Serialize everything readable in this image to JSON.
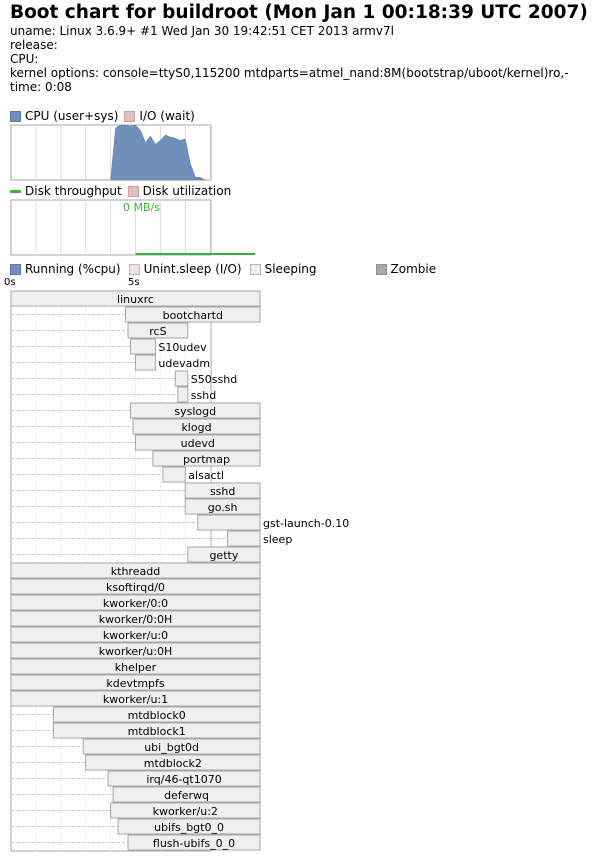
{
  "title": "Boot chart for buildroot (Mon Jan  1 00:18:39 UTC 2007)",
  "header": {
    "uname": "uname: Linux 3.6.9+ #1 Wed Jan 30 19:42:51 CET 2013 armv7l",
    "release": "release:",
    "cpu": "CPU:",
    "kernel": "kernel options: console=ttyS0,115200 mtdparts=atmel_nand:8M(bootstrap/uboot/kernel)ro,-",
    "time": "time: 0:08"
  },
  "legend_cpu": {
    "cpu_label": "CPU (user+sys)",
    "io_label": "I/O (wait)"
  },
  "legend_disk": {
    "throughput_label": "Disk throughput",
    "util_label": "Disk utilization"
  },
  "disk_rate": "0 MB/s",
  "legend_proc": {
    "running": "Running (%cpu)",
    "unint": "Unint.sleep (I/O)",
    "sleeping": "Sleeping",
    "zombie": "Zombie"
  },
  "colors": {
    "cpu": "#7190b9",
    "io": "#e1bfc0",
    "disk": "#3cb33c",
    "sleeping": "#efefef",
    "unint": "#f0e3e3",
    "zombie": "#a9a9a9",
    "border": "#a6a6a6"
  },
  "chart_data": [
    {
      "type": "area",
      "xlabel_ticks": [
        "0s",
        "5s"
      ],
      "series": [
        {
          "name": "CPU (user+sys)",
          "x": [
            4.0,
            4.2,
            4.4,
            4.6,
            4.8,
            5.0,
            5.2,
            5.4,
            5.6,
            5.8,
            6.0,
            6.2,
            6.4,
            6.6,
            6.8,
            7.0,
            7.2,
            7.4,
            7.6,
            7.8
          ],
          "values": [
            0,
            95,
            100,
            100,
            98,
            100,
            90,
            68,
            80,
            65,
            72,
            82,
            78,
            76,
            72,
            75,
            30,
            5,
            5,
            0
          ]
        }
      ],
      "xlim": [
        0,
        10
      ],
      "ylim": [
        0,
        100
      ]
    },
    {
      "type": "line",
      "series": [
        {
          "name": "Disk throughput",
          "x": [
            5.0,
            9.8
          ],
          "values": [
            0,
            0
          ]
        }
      ],
      "xlim": [
        0,
        10
      ]
    },
    {
      "type": "gantt",
      "time_ticks": [
        "0s",
        "5s"
      ],
      "processes": [
        {
          "name": "linuxrc",
          "start": 0.0,
          "end": 10.0
        },
        {
          "name": "bootchartd",
          "start": 4.6,
          "end": 10.0
        },
        {
          "name": "rcS",
          "start": 4.7,
          "end": 7.1
        },
        {
          "name": "S10udev",
          "start": 4.8,
          "end": 5.8
        },
        {
          "name": "udevadm",
          "start": 5.0,
          "end": 5.8
        },
        {
          "name": "S50sshd",
          "start": 6.6,
          "end": 7.1
        },
        {
          "name": "sshd",
          "start": 6.7,
          "end": 7.1
        },
        {
          "name": "syslogd",
          "start": 4.8,
          "end": 10.0
        },
        {
          "name": "klogd",
          "start": 4.9,
          "end": 10.0
        },
        {
          "name": "udevd",
          "start": 5.0,
          "end": 10.0
        },
        {
          "name": "portmap",
          "start": 5.7,
          "end": 10.0
        },
        {
          "name": "alsactl",
          "start": 6.1,
          "end": 7.0
        },
        {
          "name": "sshd",
          "start": 7.0,
          "end": 10.0
        },
        {
          "name": "go.sh",
          "start": 7.0,
          "end": 10.0
        },
        {
          "name": "gst-launch-0.10",
          "start": 7.5,
          "end": 10.0
        },
        {
          "name": "sleep",
          "start": 8.7,
          "end": 10.0
        },
        {
          "name": "getty",
          "start": 7.1,
          "end": 10.0
        },
        {
          "name": "kthreadd",
          "start": 0.0,
          "end": 10.0
        },
        {
          "name": "ksoftirqd/0",
          "start": 0.0,
          "end": 10.0
        },
        {
          "name": "kworker/0:0",
          "start": 0.0,
          "end": 10.0
        },
        {
          "name": "kworker/0:0H",
          "start": 0.0,
          "end": 10.0
        },
        {
          "name": "kworker/u:0",
          "start": 0.0,
          "end": 10.0
        },
        {
          "name": "kworker/u:0H",
          "start": 0.0,
          "end": 10.0
        },
        {
          "name": "khelper",
          "start": 0.0,
          "end": 10.0
        },
        {
          "name": "kdevtmpfs",
          "start": 0.0,
          "end": 10.0
        },
        {
          "name": "kworker/u:1",
          "start": 0.0,
          "end": 10.0
        },
        {
          "name": "mtdblock0",
          "start": 1.7,
          "end": 10.0
        },
        {
          "name": "mtdblock1",
          "start": 1.7,
          "end": 10.0
        },
        {
          "name": "ubi_bgt0d",
          "start": 2.9,
          "end": 10.0
        },
        {
          "name": "mtdblock2",
          "start": 3.0,
          "end": 10.0
        },
        {
          "name": "irq/46-qt1070",
          "start": 3.9,
          "end": 10.0
        },
        {
          "name": "deferwq",
          "start": 4.1,
          "end": 10.0
        },
        {
          "name": "kworker/u:2",
          "start": 4.0,
          "end": 10.0
        },
        {
          "name": "ubifs_bgt0_0",
          "start": 4.3,
          "end": 10.0
        },
        {
          "name": "flush-ubifs_0_0",
          "start": 4.7,
          "end": 10.0
        }
      ]
    }
  ]
}
